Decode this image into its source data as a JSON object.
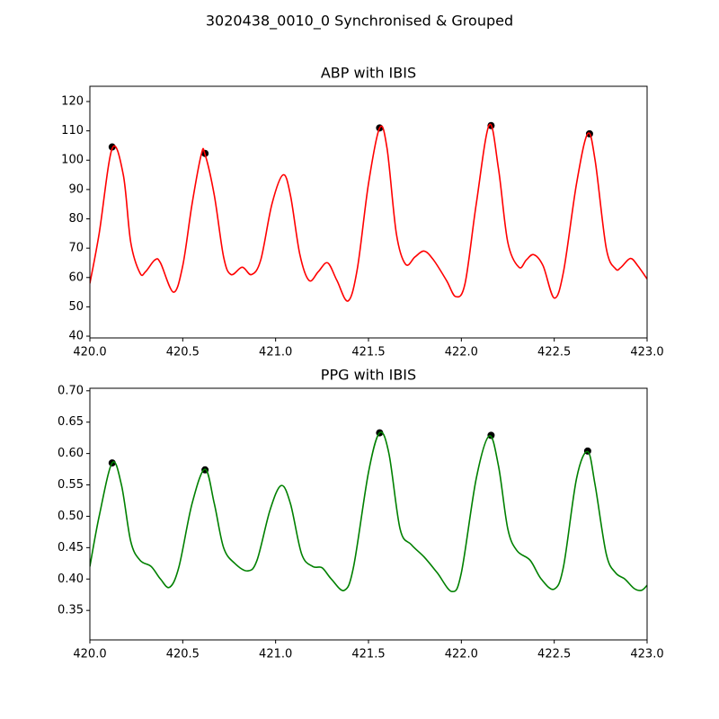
{
  "title": "3020438_0010_0 Synchronised & Grouped",
  "chart_data": [
    {
      "type": "line",
      "title": "ABP with IBIS",
      "x": [
        420.0,
        420.05,
        420.12,
        420.18,
        420.22,
        420.27,
        420.3,
        420.35,
        420.38,
        420.45,
        420.5,
        420.55,
        420.6,
        420.62,
        420.67,
        420.72,
        420.76,
        420.82,
        420.87,
        420.92,
        420.98,
        421.04,
        421.08,
        421.13,
        421.18,
        421.23,
        421.28,
        421.33,
        421.39,
        421.44,
        421.5,
        421.56,
        421.6,
        421.65,
        421.7,
        421.75,
        421.8,
        421.85,
        421.92,
        421.97,
        422.02,
        422.08,
        422.15,
        422.2,
        422.25,
        422.31,
        422.35,
        422.39,
        422.44,
        422.5,
        422.55,
        422.62,
        422.68,
        422.72,
        422.78,
        422.83,
        422.86,
        422.91,
        422.95,
        423.0
      ],
      "series": [
        {
          "color": "#ff0000",
          "values": [
            58,
            75,
            104,
            95,
            72,
            61.5,
            62,
            66,
            65,
            55,
            64,
            85,
            102,
            102,
            88,
            67,
            61,
            63.5,
            61,
            66,
            85,
            95,
            88,
            68,
            59,
            62,
            65,
            59,
            52,
            63,
            92,
            111,
            104,
            75,
            64.5,
            67,
            69,
            66,
            59,
            53.5,
            58,
            85,
            112,
            97,
            72,
            63.5,
            66,
            67.8,
            64,
            53,
            62,
            92,
            109,
            100,
            70,
            63,
            63.5,
            66.5,
            64,
            59.5
          ]
        }
      ],
      "markers": {
        "color": "#000000",
        "x": [
          420.12,
          420.62,
          421.56,
          422.16,
          422.69
        ],
        "values": [
          104.5,
          102.3,
          111,
          111.8,
          109
        ]
      },
      "xlim": [
        420,
        423
      ],
      "xticks": [
        {
          "value": 420,
          "label": "420.0"
        },
        420.5,
        {
          "value": 421,
          "label": "421.0"
        },
        421.5,
        {
          "value": 422,
          "label": "422.0"
        },
        422.5,
        {
          "value": 423,
          "label": "423.0"
        }
      ],
      "ylim": [
        39.4,
        125.2
      ],
      "yticks": [
        40,
        50,
        60,
        70,
        80,
        90,
        100,
        110,
        120
      ]
    },
    {
      "type": "line",
      "title": "PPG with IBIS",
      "x": [
        420.0,
        420.05,
        420.12,
        420.17,
        420.22,
        420.27,
        420.33,
        420.38,
        420.43,
        420.48,
        420.55,
        420.62,
        420.67,
        420.72,
        420.78,
        420.85,
        420.9,
        420.97,
        421.03,
        421.08,
        421.14,
        421.2,
        421.25,
        421.3,
        421.37,
        421.42,
        421.5,
        421.56,
        421.61,
        421.67,
        421.73,
        421.8,
        421.87,
        421.95,
        422.0,
        422.08,
        422.15,
        422.2,
        422.25,
        422.3,
        422.37,
        422.43,
        422.5,
        422.55,
        422.62,
        422.68,
        422.72,
        422.78,
        422.83,
        422.88,
        422.93,
        422.97,
        423.0
      ],
      "series": [
        {
          "color": "#008000",
          "values": [
            0.42,
            0.5,
            0.585,
            0.55,
            0.46,
            0.43,
            0.42,
            0.4,
            0.387,
            0.42,
            0.52,
            0.575,
            0.52,
            0.45,
            0.425,
            0.413,
            0.43,
            0.51,
            0.549,
            0.52,
            0.44,
            0.42,
            0.418,
            0.4,
            0.382,
            0.42,
            0.57,
            0.633,
            0.6,
            0.48,
            0.455,
            0.435,
            0.41,
            0.38,
            0.41,
            0.56,
            0.628,
            0.58,
            0.48,
            0.445,
            0.43,
            0.4,
            0.384,
            0.42,
            0.56,
            0.603,
            0.55,
            0.44,
            0.41,
            0.4,
            0.385,
            0.382,
            0.39
          ]
        }
      ],
      "markers": {
        "color": "#000000",
        "x": [
          420.12,
          420.62,
          421.56,
          422.16,
          422.68
        ],
        "values": [
          0.585,
          0.574,
          0.633,
          0.629,
          0.604
        ]
      },
      "xlim": [
        420,
        423
      ],
      "xticks": [
        {
          "value": 420,
          "label": "420.0"
        },
        420.5,
        {
          "value": 421,
          "label": "421.0"
        },
        421.5,
        {
          "value": 422,
          "label": "422.0"
        },
        422.5,
        {
          "value": 423,
          "label": "423.0"
        }
      ],
      "ylim": [
        0.303,
        0.704
      ],
      "yticks": [
        0.35,
        {
          "value": 0.4,
          "label": "0.40"
        },
        0.45,
        {
          "value": 0.5,
          "label": "0.50"
        },
        0.55,
        {
          "value": 0.6,
          "label": "0.60"
        },
        0.65,
        {
          "value": 0.7,
          "label": "0.70"
        }
      ]
    }
  ]
}
